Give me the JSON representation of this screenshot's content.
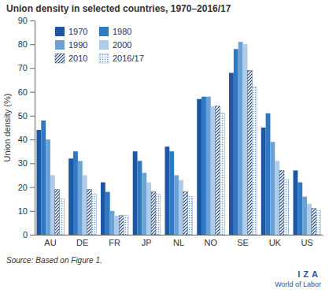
{
  "chart_data": {
    "type": "bar",
    "title": "Union density in selected countries, 1970–2016/17",
    "y_label": "Union density (%)",
    "source": "Source: Based on Figure 1.",
    "logo": [
      "IZA",
      "World of Labor"
    ],
    "categories": [
      "AU",
      "DE",
      "FR",
      "JP",
      "NL",
      "NO",
      "SE",
      "UK",
      "US"
    ],
    "series": [
      {
        "name": "1970",
        "color": "#1d57a4",
        "values": [
          44,
          32,
          22,
          35,
          37,
          57,
          68,
          45,
          27
        ]
      },
      {
        "name": "1980",
        "color": "#2f78c4",
        "values": [
          48,
          35,
          18,
          31,
          35,
          58,
          78,
          51,
          22
        ]
      },
      {
        "name": "1990",
        "color": "#6aa2d8",
        "values": [
          40,
          31,
          10,
          26,
          25,
          58,
          81,
          39,
          16
        ]
      },
      {
        "name": "2000",
        "color": "#aecbea",
        "values": [
          25,
          25,
          8,
          22,
          23,
          54,
          80,
          31,
          13
        ]
      },
      {
        "name": "2010",
        "color": "#1f3f6e",
        "line_style": "hatched",
        "values": [
          19,
          19,
          8,
          18,
          18,
          54,
          69,
          27,
          11
        ]
      },
      {
        "name": "2016/17",
        "color": "#5b8fc9",
        "line_style": "dotted",
        "values": [
          15,
          17,
          8,
          17,
          16,
          51,
          62,
          23,
          10
        ]
      }
    ],
    "ylim": [
      0,
      90
    ],
    "yticks": [
      0,
      10,
      20,
      30,
      40,
      50,
      60,
      70,
      80,
      90
    ],
    "grid": false,
    "legend": "upper left"
  }
}
